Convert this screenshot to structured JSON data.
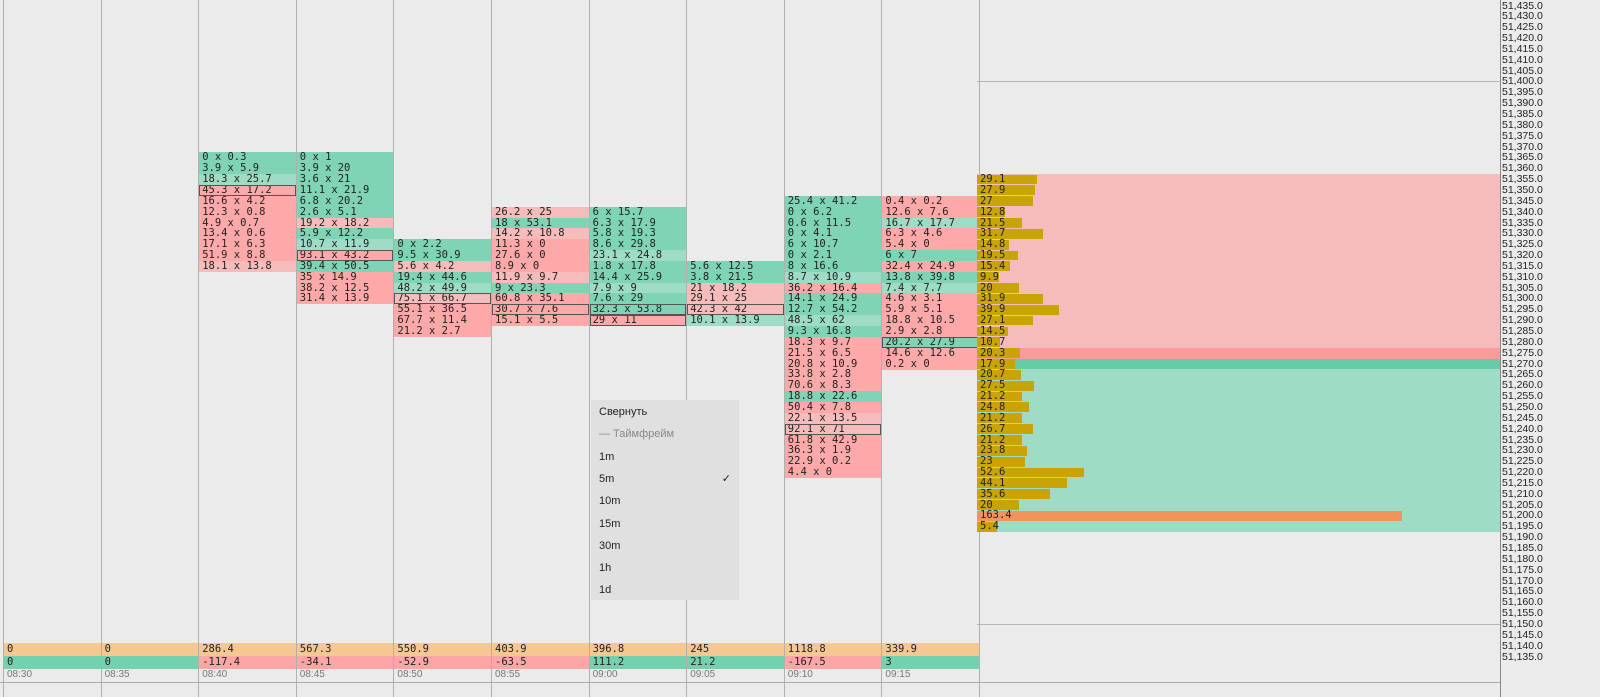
{
  "colors": {
    "bid_green": "#7ed4b5",
    "ask_red": "#fea9a9",
    "light_green": "#9fdcc6",
    "light_red": "#f6bcbc",
    "volume_bar": "#c8a404",
    "poc_bar": "#f2935a",
    "volume_row": "#f5c891",
    "delta_pos": "#74d1ad",
    "delta_neg": "#fda6a6"
  },
  "time_columns": [
    {
      "time": "08:30",
      "volume": "0",
      "delta": "0",
      "delta_sign": "pos",
      "cells": []
    },
    {
      "time": "08:35",
      "volume": "0",
      "delta": "0",
      "delta_sign": "pos",
      "cells": []
    },
    {
      "time": "08:40",
      "volume": "286.4",
      "delta": "-117.4",
      "delta_sign": "neg",
      "cells": [
        {
          "price": 51365,
          "text": "0 x 0.3",
          "c": "g"
        },
        {
          "price": 51360,
          "text": "3.9 x 5.9",
          "c": "g"
        },
        {
          "price": 51355,
          "text": "18.3 x 25.7",
          "c": "lg"
        },
        {
          "price": 51350,
          "text": "45.3 x 17.2",
          "c": "r",
          "hl": true
        },
        {
          "price": 51345,
          "text": "16.6 x 4.2",
          "c": "r"
        },
        {
          "price": 51340,
          "text": "12.3 x 0.8",
          "c": "r"
        },
        {
          "price": 51335,
          "text": "4.9 x 0.7",
          "c": "r"
        },
        {
          "price": 51330,
          "text": "13.4 x 0.6",
          "c": "r"
        },
        {
          "price": 51325,
          "text": "17.1 x 6.3",
          "c": "r"
        },
        {
          "price": 51320,
          "text": "51.9 x 8.8",
          "c": "r"
        },
        {
          "price": 51315,
          "text": "18.1 x 13.8",
          "c": "lr"
        }
      ]
    },
    {
      "time": "08:45",
      "volume": "567.3",
      "delta": "-34.1",
      "delta_sign": "neg",
      "cells": [
        {
          "price": 51365,
          "text": "0 x 1",
          "c": "g"
        },
        {
          "price": 51360,
          "text": "3.9 x 20",
          "c": "g"
        },
        {
          "price": 51355,
          "text": "3.6 x 21",
          "c": "g"
        },
        {
          "price": 51350,
          "text": "11.1 x 21.9",
          "c": "g"
        },
        {
          "price": 51345,
          "text": "6.8 x 20.2",
          "c": "g"
        },
        {
          "price": 51340,
          "text": "2.6 x 5.1",
          "c": "g"
        },
        {
          "price": 51335,
          "text": "19.2 x 18.2",
          "c": "lr"
        },
        {
          "price": 51330,
          "text": "5.9 x 12.2",
          "c": "g"
        },
        {
          "price": 51325,
          "text": "10.7 x 11.9",
          "c": "lg"
        },
        {
          "price": 51320,
          "text": "93.1 x 43.2",
          "c": "r",
          "hl": true
        },
        {
          "price": 51315,
          "text": "39.4 x 50.5",
          "c": "g"
        },
        {
          "price": 51310,
          "text": "35 x 14.9",
          "c": "r"
        },
        {
          "price": 51305,
          "text": "38.2 x 12.5",
          "c": "r"
        },
        {
          "price": 51300,
          "text": "31.4 x 13.9",
          "c": "r"
        }
      ]
    },
    {
      "time": "08:50",
      "volume": "550.9",
      "delta": "-52.9",
      "delta_sign": "neg",
      "cells": [
        {
          "price": 51325,
          "text": "0 x 2.2",
          "c": "g"
        },
        {
          "price": 51320,
          "text": "9.5 x 30.9",
          "c": "g"
        },
        {
          "price": 51315,
          "text": "5.6 x 4.2",
          "c": "lr"
        },
        {
          "price": 51310,
          "text": "19.4 x 44.6",
          "c": "g"
        },
        {
          "price": 51305,
          "text": "48.2 x 49.9",
          "c": "lg"
        },
        {
          "price": 51300,
          "text": "75.1 x 66.7",
          "c": "lr",
          "hl": true
        },
        {
          "price": 51295,
          "text": "55.1 x 36.5",
          "c": "r"
        },
        {
          "price": 51290,
          "text": "67.7 x 11.4",
          "c": "r"
        },
        {
          "price": 51285,
          "text": "21.2 x 2.7",
          "c": "r"
        }
      ]
    },
    {
      "time": "08:55",
      "volume": "403.9",
      "delta": "-63.5",
      "delta_sign": "neg",
      "cells": [
        {
          "price": 51340,
          "text": "26.2 x 25",
          "c": "lr"
        },
        {
          "price": 51335,
          "text": "18 x 53.1",
          "c": "g"
        },
        {
          "price": 51330,
          "text": "14.2 x 10.8",
          "c": "lr"
        },
        {
          "price": 51325,
          "text": "11.3 x 0",
          "c": "r"
        },
        {
          "price": 51320,
          "text": "27.6 x 0",
          "c": "r"
        },
        {
          "price": 51315,
          "text": "8.9 x 0",
          "c": "r"
        },
        {
          "price": 51310,
          "text": "11.9 x 9.7",
          "c": "lr"
        },
        {
          "price": 51305,
          "text": "9 x 23.3",
          "c": "g"
        },
        {
          "price": 51300,
          "text": "60.8 x 35.1",
          "c": "r"
        },
        {
          "price": 51295,
          "text": "30.7 x 7.6",
          "c": "r",
          "hl": true
        },
        {
          "price": 51290,
          "text": "15.1 x 5.5",
          "c": "r"
        }
      ]
    },
    {
      "time": "09:00",
      "volume": "396.8",
      "delta": "111.2",
      "delta_sign": "pos",
      "cells": [
        {
          "price": 51340,
          "text": "6 x 15.7",
          "c": "g"
        },
        {
          "price": 51335,
          "text": "6.3 x 17.9",
          "c": "g"
        },
        {
          "price": 51330,
          "text": "5.8 x 19.3",
          "c": "g"
        },
        {
          "price": 51325,
          "text": "8.6 x 29.8",
          "c": "g"
        },
        {
          "price": 51320,
          "text": "23.1 x 24.8",
          "c": "lg"
        },
        {
          "price": 51315,
          "text": "1.8 x 17.8",
          "c": "g"
        },
        {
          "price": 51310,
          "text": "14.4 x 25.9",
          "c": "g"
        },
        {
          "price": 51305,
          "text": "7.9 x 9",
          "c": "lg"
        },
        {
          "price": 51300,
          "text": "7.6 x 29",
          "c": "g"
        },
        {
          "price": 51295,
          "text": "32.3 x 53.8",
          "c": "g",
          "hl": true
        },
        {
          "price": 51290,
          "text": "29 x 11",
          "c": "r",
          "hl": true
        }
      ]
    },
    {
      "time": "09:05",
      "volume": "245",
      "delta": "21.2",
      "delta_sign": "pos",
      "cells": [
        {
          "price": 51315,
          "text": "5.6 x 12.5",
          "c": "g"
        },
        {
          "price": 51310,
          "text": "3.8 x 21.5",
          "c": "g"
        },
        {
          "price": 51305,
          "text": "21 x 18.2",
          "c": "lr"
        },
        {
          "price": 51300,
          "text": "29.1 x 25",
          "c": "lr"
        },
        {
          "price": 51295,
          "text": "42.3 x 42",
          "c": "lr",
          "hl": true
        },
        {
          "price": 51290,
          "text": "10.1 x 13.9",
          "c": "lg"
        }
      ]
    },
    {
      "time": "09:10",
      "volume": "1118.8",
      "delta": "-167.5",
      "delta_sign": "neg",
      "cells": [
        {
          "price": 51345,
          "text": "25.4 x 41.2",
          "c": "g"
        },
        {
          "price": 51340,
          "text": "0 x 6.2",
          "c": "g"
        },
        {
          "price": 51335,
          "text": "0.6 x 11.5",
          "c": "g"
        },
        {
          "price": 51330,
          "text": "0 x 4.1",
          "c": "g"
        },
        {
          "price": 51325,
          "text": "6 x 10.7",
          "c": "g"
        },
        {
          "price": 51320,
          "text": "0 x 2.1",
          "c": "g"
        },
        {
          "price": 51315,
          "text": "8 x 16.6",
          "c": "g"
        },
        {
          "price": 51310,
          "text": "8.7 x 10.9",
          "c": "lg"
        },
        {
          "price": 51305,
          "text": "36.2 x 16.4",
          "c": "r"
        },
        {
          "price": 51300,
          "text": "14.1 x 24.9",
          "c": "g"
        },
        {
          "price": 51295,
          "text": "12.7 x 54.2",
          "c": "g"
        },
        {
          "price": 51290,
          "text": "48.5 x 62",
          "c": "lg"
        },
        {
          "price": 51285,
          "text": "9.3 x 16.8",
          "c": "g"
        },
        {
          "price": 51280,
          "text": "18.3 x 9.7",
          "c": "r"
        },
        {
          "price": 51275,
          "text": "21.5 x 6.5",
          "c": "r"
        },
        {
          "price": 51270,
          "text": "20.8 x 10.9",
          "c": "r"
        },
        {
          "price": 51265,
          "text": "33.8 x 2.8",
          "c": "r"
        },
        {
          "price": 51260,
          "text": "70.6 x 8.3",
          "c": "r"
        },
        {
          "price": 51255,
          "text": "18.8 x 22.6",
          "c": "g"
        },
        {
          "price": 51250,
          "text": "50.4 x 7.8",
          "c": "r"
        },
        {
          "price": 51245,
          "text": "22.1 x 13.5",
          "c": "lr"
        },
        {
          "price": 51240,
          "text": "92.1 x 71",
          "c": "lr",
          "hl": true
        },
        {
          "price": 51235,
          "text": "61.8 x 42.9",
          "c": "r"
        },
        {
          "price": 51230,
          "text": "36.3 x 1.9",
          "c": "r"
        },
        {
          "price": 51225,
          "text": "22.9 x 0.2",
          "c": "r"
        },
        {
          "price": 51220,
          "text": "4.4 x 0",
          "c": "r"
        }
      ]
    },
    {
      "time": "09:15",
      "volume": "339.9",
      "delta": "3",
      "delta_sign": "pos",
      "cells": [
        {
          "price": 51345,
          "text": "0.4 x 0.2",
          "c": "r"
        },
        {
          "price": 51340,
          "text": "12.6 x 7.6",
          "c": "r"
        },
        {
          "price": 51335,
          "text": "16.7 x 17.7",
          "c": "lg"
        },
        {
          "price": 51330,
          "text": "6.3 x 4.6",
          "c": "r"
        },
        {
          "price": 51325,
          "text": "5.4 x 0",
          "c": "r"
        },
        {
          "price": 51320,
          "text": "6 x 7",
          "c": "g"
        },
        {
          "price": 51315,
          "text": "32.4 x 24.9",
          "c": "r"
        },
        {
          "price": 51310,
          "text": "13.8 x 39.8",
          "c": "g"
        },
        {
          "price": 51305,
          "text": "7.4 x 7.7",
          "c": "lg"
        },
        {
          "price": 51300,
          "text": "4.6 x 3.1",
          "c": "r"
        },
        {
          "price": 51295,
          "text": "5.9 x 5.1",
          "c": "r"
        },
        {
          "price": 51290,
          "text": "18.8 x 10.5",
          "c": "r"
        },
        {
          "price": 51285,
          "text": "2.9 x 2.8",
          "c": "r"
        },
        {
          "price": 51280,
          "text": "20.2 x 27.9",
          "c": "g",
          "hl": true
        },
        {
          "price": 51275,
          "text": "14.6 x 12.6",
          "c": "r"
        },
        {
          "price": 51270,
          "text": "0.2 x 0",
          "c": "r"
        }
      ]
    }
  ],
  "volume_profile": [
    {
      "price": 51355,
      "value": "29.1"
    },
    {
      "price": 51350,
      "value": "27.9"
    },
    {
      "price": 51345,
      "value": "27"
    },
    {
      "price": 51340,
      "value": "12.8"
    },
    {
      "price": 51335,
      "value": "21.5"
    },
    {
      "price": 51330,
      "value": "31.7"
    },
    {
      "price": 51325,
      "value": "14.8"
    },
    {
      "price": 51320,
      "value": "19.5"
    },
    {
      "price": 51315,
      "value": "15.4"
    },
    {
      "price": 51310,
      "value": "9.9"
    },
    {
      "price": 51305,
      "value": "20"
    },
    {
      "price": 51300,
      "value": "31.9"
    },
    {
      "price": 51295,
      "value": "39.9"
    },
    {
      "price": 51290,
      "value": "27.1"
    },
    {
      "price": 51285,
      "value": "14.5"
    },
    {
      "price": 51280,
      "value": "10.7"
    },
    {
      "price": 51275,
      "value": "20.3"
    },
    {
      "price": 51270,
      "value": "17.9"
    },
    {
      "price": 51265,
      "value": "20.7"
    },
    {
      "price": 51260,
      "value": "27.5"
    },
    {
      "price": 51255,
      "value": "21.2"
    },
    {
      "price": 51250,
      "value": "24.8"
    },
    {
      "price": 51245,
      "value": "21.2"
    },
    {
      "price": 51240,
      "value": "26.7"
    },
    {
      "price": 51235,
      "value": "21.2"
    },
    {
      "price": 51230,
      "value": "23.8"
    },
    {
      "price": 51225,
      "value": "23"
    },
    {
      "price": 51220,
      "value": "52.6"
    },
    {
      "price": 51215,
      "value": "44.1"
    },
    {
      "price": 51210,
      "value": "35.6"
    },
    {
      "price": 51205,
      "value": "20"
    },
    {
      "price": 51200,
      "value": "163.4",
      "poc": true
    },
    {
      "price": 51195,
      "value": "5.4"
    }
  ],
  "profile_zones": {
    "upper_red": [
      51355,
      51280
    ],
    "current_red": 51275,
    "current_green": 51270,
    "lower_green": [
      51265,
      51195
    ]
  },
  "price_axis": {
    "max": 51435,
    "min": 51135,
    "step": 5,
    "gridlines": [
      51400,
      51350,
      51300,
      51250,
      51200,
      51150
    ]
  },
  "context_menu": {
    "items": [
      {
        "label": "Свернуть",
        "type": "action"
      },
      {
        "label": "— Таймфрейм",
        "type": "section"
      },
      {
        "label": "1m",
        "type": "option"
      },
      {
        "label": "5m",
        "type": "option",
        "checked": true
      },
      {
        "label": "10m",
        "type": "option"
      },
      {
        "label": "15m",
        "type": "option"
      },
      {
        "label": "30m",
        "type": "option"
      },
      {
        "label": "1h",
        "type": "option"
      },
      {
        "label": "1d",
        "type": "option"
      }
    ],
    "check_mark": "✓"
  }
}
